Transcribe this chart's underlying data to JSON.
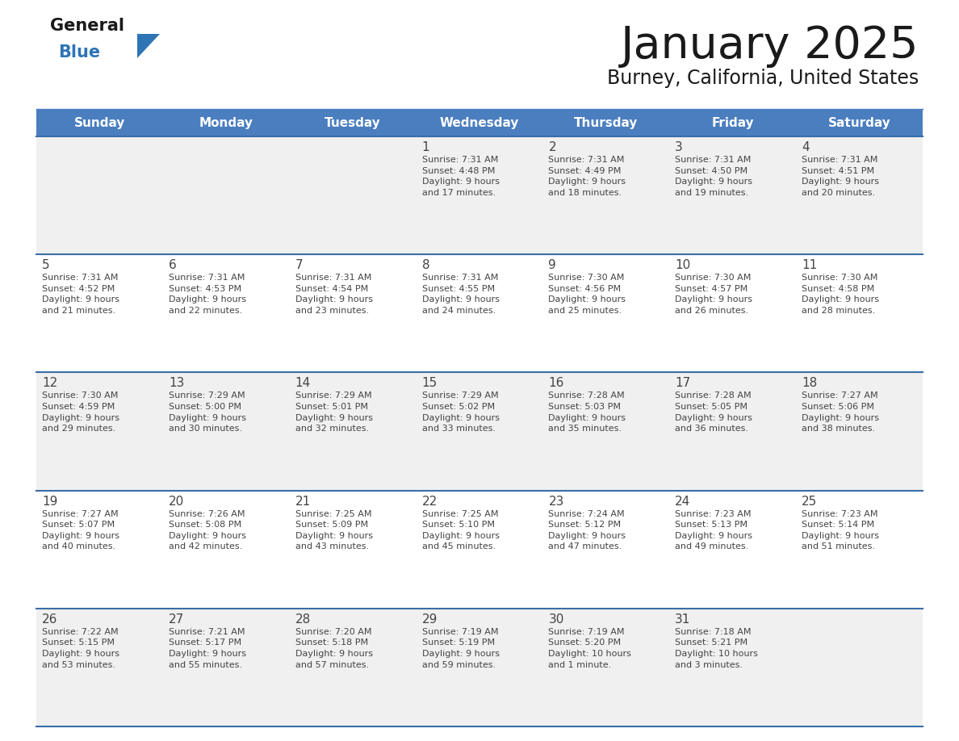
{
  "title": "January 2025",
  "subtitle": "Burney, California, United States",
  "days_of_week": [
    "Sunday",
    "Monday",
    "Tuesday",
    "Wednesday",
    "Thursday",
    "Friday",
    "Saturday"
  ],
  "header_bg": "#4a7ebf",
  "header_text": "#ffffff",
  "row_bg_light": "#f0f0f0",
  "row_bg_white": "#ffffff",
  "line_color": "#3a6ea8",
  "text_color": "#444444",
  "title_color": "#1a1a1a",
  "logo_general_color": "#1a1a1a",
  "logo_blue_color": "#2e75b6",
  "weeks": [
    [
      {
        "day": null,
        "info": null
      },
      {
        "day": null,
        "info": null
      },
      {
        "day": null,
        "info": null
      },
      {
        "day": 1,
        "info": "Sunrise: 7:31 AM\nSunset: 4:48 PM\nDaylight: 9 hours\nand 17 minutes."
      },
      {
        "day": 2,
        "info": "Sunrise: 7:31 AM\nSunset: 4:49 PM\nDaylight: 9 hours\nand 18 minutes."
      },
      {
        "day": 3,
        "info": "Sunrise: 7:31 AM\nSunset: 4:50 PM\nDaylight: 9 hours\nand 19 minutes."
      },
      {
        "day": 4,
        "info": "Sunrise: 7:31 AM\nSunset: 4:51 PM\nDaylight: 9 hours\nand 20 minutes."
      }
    ],
    [
      {
        "day": 5,
        "info": "Sunrise: 7:31 AM\nSunset: 4:52 PM\nDaylight: 9 hours\nand 21 minutes."
      },
      {
        "day": 6,
        "info": "Sunrise: 7:31 AM\nSunset: 4:53 PM\nDaylight: 9 hours\nand 22 minutes."
      },
      {
        "day": 7,
        "info": "Sunrise: 7:31 AM\nSunset: 4:54 PM\nDaylight: 9 hours\nand 23 minutes."
      },
      {
        "day": 8,
        "info": "Sunrise: 7:31 AM\nSunset: 4:55 PM\nDaylight: 9 hours\nand 24 minutes."
      },
      {
        "day": 9,
        "info": "Sunrise: 7:30 AM\nSunset: 4:56 PM\nDaylight: 9 hours\nand 25 minutes."
      },
      {
        "day": 10,
        "info": "Sunrise: 7:30 AM\nSunset: 4:57 PM\nDaylight: 9 hours\nand 26 minutes."
      },
      {
        "day": 11,
        "info": "Sunrise: 7:30 AM\nSunset: 4:58 PM\nDaylight: 9 hours\nand 28 minutes."
      }
    ],
    [
      {
        "day": 12,
        "info": "Sunrise: 7:30 AM\nSunset: 4:59 PM\nDaylight: 9 hours\nand 29 minutes."
      },
      {
        "day": 13,
        "info": "Sunrise: 7:29 AM\nSunset: 5:00 PM\nDaylight: 9 hours\nand 30 minutes."
      },
      {
        "day": 14,
        "info": "Sunrise: 7:29 AM\nSunset: 5:01 PM\nDaylight: 9 hours\nand 32 minutes."
      },
      {
        "day": 15,
        "info": "Sunrise: 7:29 AM\nSunset: 5:02 PM\nDaylight: 9 hours\nand 33 minutes."
      },
      {
        "day": 16,
        "info": "Sunrise: 7:28 AM\nSunset: 5:03 PM\nDaylight: 9 hours\nand 35 minutes."
      },
      {
        "day": 17,
        "info": "Sunrise: 7:28 AM\nSunset: 5:05 PM\nDaylight: 9 hours\nand 36 minutes."
      },
      {
        "day": 18,
        "info": "Sunrise: 7:27 AM\nSunset: 5:06 PM\nDaylight: 9 hours\nand 38 minutes."
      }
    ],
    [
      {
        "day": 19,
        "info": "Sunrise: 7:27 AM\nSunset: 5:07 PM\nDaylight: 9 hours\nand 40 minutes."
      },
      {
        "day": 20,
        "info": "Sunrise: 7:26 AM\nSunset: 5:08 PM\nDaylight: 9 hours\nand 42 minutes."
      },
      {
        "day": 21,
        "info": "Sunrise: 7:25 AM\nSunset: 5:09 PM\nDaylight: 9 hours\nand 43 minutes."
      },
      {
        "day": 22,
        "info": "Sunrise: 7:25 AM\nSunset: 5:10 PM\nDaylight: 9 hours\nand 45 minutes."
      },
      {
        "day": 23,
        "info": "Sunrise: 7:24 AM\nSunset: 5:12 PM\nDaylight: 9 hours\nand 47 minutes."
      },
      {
        "day": 24,
        "info": "Sunrise: 7:23 AM\nSunset: 5:13 PM\nDaylight: 9 hours\nand 49 minutes."
      },
      {
        "day": 25,
        "info": "Sunrise: 7:23 AM\nSunset: 5:14 PM\nDaylight: 9 hours\nand 51 minutes."
      }
    ],
    [
      {
        "day": 26,
        "info": "Sunrise: 7:22 AM\nSunset: 5:15 PM\nDaylight: 9 hours\nand 53 minutes."
      },
      {
        "day": 27,
        "info": "Sunrise: 7:21 AM\nSunset: 5:17 PM\nDaylight: 9 hours\nand 55 minutes."
      },
      {
        "day": 28,
        "info": "Sunrise: 7:20 AM\nSunset: 5:18 PM\nDaylight: 9 hours\nand 57 minutes."
      },
      {
        "day": 29,
        "info": "Sunrise: 7:19 AM\nSunset: 5:19 PM\nDaylight: 9 hours\nand 59 minutes."
      },
      {
        "day": 30,
        "info": "Sunrise: 7:19 AM\nSunset: 5:20 PM\nDaylight: 10 hours\nand 1 minute."
      },
      {
        "day": 31,
        "info": "Sunrise: 7:18 AM\nSunset: 5:21 PM\nDaylight: 10 hours\nand 3 minutes."
      },
      {
        "day": null,
        "info": null
      }
    ]
  ],
  "fig_width": 11.88,
  "fig_height": 9.18,
  "dpi": 100
}
